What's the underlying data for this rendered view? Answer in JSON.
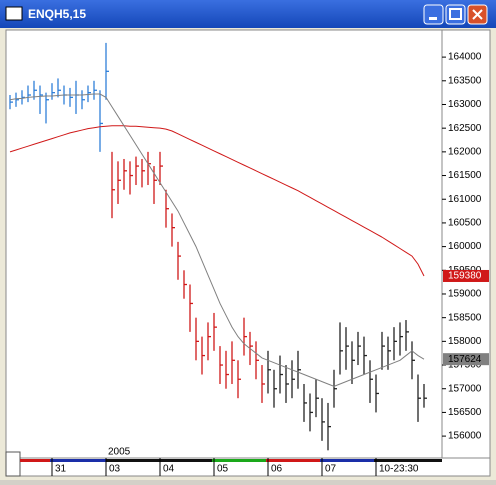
{
  "window_title": "ENQH5,15",
  "chart_data": {
    "type": "ohlc",
    "year_label": "2005",
    "categories": [
      null,
      null,
      null,
      null,
      null,
      null,
      null,
      "31",
      null,
      null,
      null,
      null,
      null,
      null,
      null,
      null,
      "03",
      null,
      null,
      null,
      null,
      null,
      null,
      null,
      null,
      "04",
      null,
      null,
      null,
      null,
      null,
      null,
      null,
      null,
      "05",
      null,
      null,
      null,
      null,
      null,
      null,
      null,
      null,
      "06",
      null,
      null,
      null,
      null,
      null,
      null,
      null,
      null,
      "07",
      null,
      null,
      null,
      null,
      null,
      null,
      null,
      null,
      "10-23:30",
      null,
      null,
      null,
      null,
      null,
      null,
      null,
      null
    ],
    "high": [
      1632,
      1632.5,
      1633,
      1634,
      1635,
      1634,
      1632.5,
      1634.5,
      1635.5,
      1634,
      1633.5,
      1635,
      1633,
      1634,
      1635,
      1633,
      1643,
      1620,
      1618,
      1618.5,
      1618,
      1619,
      1618.5,
      1620,
      1617,
      1620,
      1612,
      1607,
      1601,
      1595,
      1592,
      1585,
      1581,
      1584,
      1586,
      1579,
      1578,
      1580,
      1576,
      1585,
      1582,
      1580,
      1575,
      1578,
      1574,
      1577,
      1575,
      1576,
      1578,
      1571,
      1569,
      1572,
      1568,
      1567,
      1574,
      1584,
      1583,
      1580,
      1582,
      1581,
      1576,
      1573,
      1582,
      1581,
      1583,
      1584,
      1584.5,
      1580,
      1573,
      1571
    ],
    "low": [
      1629,
      1629.5,
      1630,
      1630.5,
      1631,
      1628,
      1626,
      1631,
      1631.5,
      1630,
      1629.5,
      1628,
      1629,
      1630.5,
      1631,
      1620,
      1631,
      1606,
      1609,
      1612,
      1611,
      1613,
      1612.5,
      1613,
      1609,
      1613,
      1604,
      1600,
      1593,
      1589,
      1582,
      1576,
      1573,
      1576,
      1578,
      1571,
      1570,
      1571,
      1568,
      1577,
      1575,
      1572,
      1567,
      1569,
      1566,
      1569,
      1567,
      1568,
      1570,
      1563,
      1561,
      1564,
      1559,
      1557,
      1566,
      1573,
      1574,
      1571,
      1575,
      1573,
      1567,
      1565,
      1574,
      1574,
      1576,
      1577,
      1578,
      1572,
      1563,
      1566
    ],
    "close": [
      1630.5,
      1631,
      1631.5,
      1632,
      1633,
      1632,
      1631,
      1632.5,
      1633,
      1632,
      1631.5,
      1632,
      1631,
      1632.5,
      1633,
      1626,
      1637,
      1612,
      1614,
      1616,
      1615,
      1617,
      1616,
      1617.5,
      1614,
      1617,
      1608,
      1604,
      1598,
      1592,
      1588,
      1580,
      1577,
      1581,
      1583,
      1575,
      1573,
      1576,
      1572,
      1581,
      1579,
      1576,
      1571,
      1574,
      1570,
      1573,
      1571,
      1572,
      1574,
      1567,
      1565,
      1568,
      1563,
      1562,
      1570,
      1578,
      1579,
      1576,
      1579,
      1577,
      1572,
      1569,
      1579,
      1578,
      1580,
      1581,
      1582,
      1576,
      1568,
      1568
    ],
    "colors": [
      "#2f7fd8",
      "#2f7fd8",
      "#2f7fd8",
      "#2f7fd8",
      "#2f7fd8",
      "#2f7fd8",
      "#2f7fd8",
      "#2f7fd8",
      "#2f7fd8",
      "#2f7fd8",
      "#2f7fd8",
      "#2f7fd8",
      "#2f7fd8",
      "#2f7fd8",
      "#2f7fd8",
      "#2f7fd8",
      "#2f7fd8",
      "#d01818",
      "#d01818",
      "#d01818",
      "#d01818",
      "#d01818",
      "#d01818",
      "#d01818",
      "#d01818",
      "#d01818",
      "#d01818",
      "#d01818",
      "#d01818",
      "#d01818",
      "#d01818",
      "#d01818",
      "#d01818",
      "#d01818",
      "#d01818",
      "#d01818",
      "#d01818",
      "#d01818",
      "#d01818",
      "#d01818",
      "#d01818",
      "#d01818",
      "#d01818",
      "#222222",
      "#222222",
      "#222222",
      "#222222",
      "#222222",
      "#222222",
      "#222222",
      "#222222",
      "#222222",
      "#222222",
      "#222222",
      "#222222",
      "#222222",
      "#222222",
      "#222222",
      "#222222",
      "#222222",
      "#222222",
      "#222222",
      "#222222",
      "#222222",
      "#222222",
      "#222222",
      "#222222",
      "#222222",
      "#222222",
      "#222222"
    ],
    "ma": [
      {
        "color": "#d01818",
        "tag_text_color": "#ffffff",
        "last_label": "159380",
        "values": [
          1620,
          1620.4,
          1620.8,
          1621.2,
          1621.6,
          1622,
          1622.4,
          1622.8,
          1623.2,
          1623.6,
          1624,
          1624.3,
          1624.6,
          1624.9,
          1625.1,
          1625.3,
          1625.4,
          1625.5,
          1625.5,
          1625.5,
          1625.4,
          1625.4,
          1625.3,
          1625.2,
          1625.1,
          1625,
          1624.8,
          1624.4,
          1623.8,
          1623.2,
          1622.6,
          1622,
          1621.4,
          1620.8,
          1620.2,
          1619.6,
          1619,
          1618.4,
          1617.8,
          1617.2,
          1616.6,
          1616,
          1615.4,
          1614.8,
          1614.2,
          1613.6,
          1613,
          1612.4,
          1611.8,
          1611.1,
          1610.4,
          1609.7,
          1609,
          1608.3,
          1607.6,
          1606.9,
          1606.2,
          1605.5,
          1604.8,
          1604.1,
          1603.4,
          1602.7,
          1602,
          1601.2,
          1600.4,
          1599.6,
          1598.8,
          1598,
          1596.3,
          1593.8
        ]
      },
      {
        "color": "#808080",
        "tag_text_color": "#000000",
        "last_label": "157624",
        "values": [
          1631,
          1631.2,
          1631.3,
          1631.5,
          1631.6,
          1631.7,
          1631.8,
          1631.8,
          1631.9,
          1632,
          1632,
          1632,
          1632,
          1632.1,
          1632.2,
          1632.2,
          1631.5,
          1629.5,
          1627.5,
          1625.5,
          1623.5,
          1621.5,
          1619.5,
          1617.5,
          1615.5,
          1613.5,
          1611.5,
          1609.5,
          1607.5,
          1605,
          1602.5,
          1600,
          1597,
          1594,
          1591,
          1588,
          1585.5,
          1583,
          1581,
          1579.5,
          1578.5,
          1577.5,
          1576.5,
          1576,
          1575.5,
          1575,
          1574.5,
          1574,
          1573.5,
          1573,
          1572.5,
          1572,
          1571.5,
          1571,
          1570.5,
          1571,
          1571.5,
          1572,
          1572.5,
          1573,
          1573.5,
          1574,
          1574.5,
          1575,
          1575.5,
          1576,
          1577,
          1578,
          1577,
          1576.24
        ]
      }
    ],
    "ylim": [
      1555.8,
      1645.3
    ],
    "yticks": [
      {
        "value": 1560,
        "label": "156000"
      },
      {
        "value": 1565,
        "label": "156500"
      },
      {
        "value": 1570,
        "label": "157000"
      },
      {
        "value": 1575,
        "label": "157500"
      },
      {
        "value": 1580,
        "label": "158000"
      },
      {
        "value": 1585,
        "label": "158500"
      },
      {
        "value": 1590,
        "label": "159000"
      },
      {
        "value": 1595,
        "label": "159500"
      },
      {
        "value": 1600,
        "label": "160000"
      },
      {
        "value": 1605,
        "label": "160500"
      },
      {
        "value": 1610,
        "label": "161000"
      },
      {
        "value": 1615,
        "label": "161500"
      },
      {
        "value": 1620,
        "label": "162000"
      },
      {
        "value": 1625,
        "label": "162500"
      },
      {
        "value": 1630,
        "label": "163000"
      },
      {
        "value": 1635,
        "label": "163500"
      },
      {
        "value": 1640,
        "label": "164000"
      }
    ]
  }
}
